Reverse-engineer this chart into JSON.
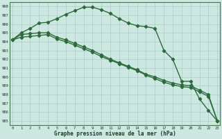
{
  "title": "Graphe pression niveau de la mer (hPa)",
  "background_color": "#cce8e0",
  "grid_color": "#aacccc",
  "line_color": "#2d6b3c",
  "xlim": [
    -0.3,
    23.3
  ],
  "ylim": [
    984.5,
    998.5
  ],
  "yticks": [
    985,
    986,
    987,
    988,
    989,
    990,
    991,
    992,
    993,
    994,
    995,
    996,
    997,
    998
  ],
  "xticks": [
    0,
    1,
    2,
    3,
    4,
    5,
    6,
    7,
    8,
    9,
    10,
    11,
    12,
    13,
    14,
    15,
    16,
    17,
    18,
    19,
    20,
    21,
    22,
    23
  ],
  "series": [
    [
      994.2,
      995.0,
      995.5,
      996.1,
      996.2,
      996.6,
      997.1,
      997.5,
      997.9,
      997.9,
      997.6,
      997.2,
      996.6,
      996.1,
      995.8,
      995.7,
      995.5,
      993.0,
      992.0,
      989.5,
      989.5,
      987.5,
      986.2,
      985.0
    ],
    [
      994.2,
      994.8,
      994.9,
      995.0,
      995.0,
      994.5,
      994.2,
      993.8,
      993.4,
      993.0,
      992.5,
      992.0,
      991.6,
      991.2,
      990.8,
      990.3,
      990.0,
      989.6,
      989.3,
      989.1,
      989.0,
      988.5,
      988.0,
      985.0
    ],
    [
      994.2,
      994.5,
      994.6,
      994.7,
      994.8,
      994.3,
      994.0,
      993.6,
      993.2,
      992.8,
      992.3,
      991.9,
      991.5,
      991.1,
      990.7,
      990.2,
      989.8,
      989.4,
      989.1,
      988.9,
      988.8,
      988.3,
      987.8,
      985.0
    ]
  ]
}
